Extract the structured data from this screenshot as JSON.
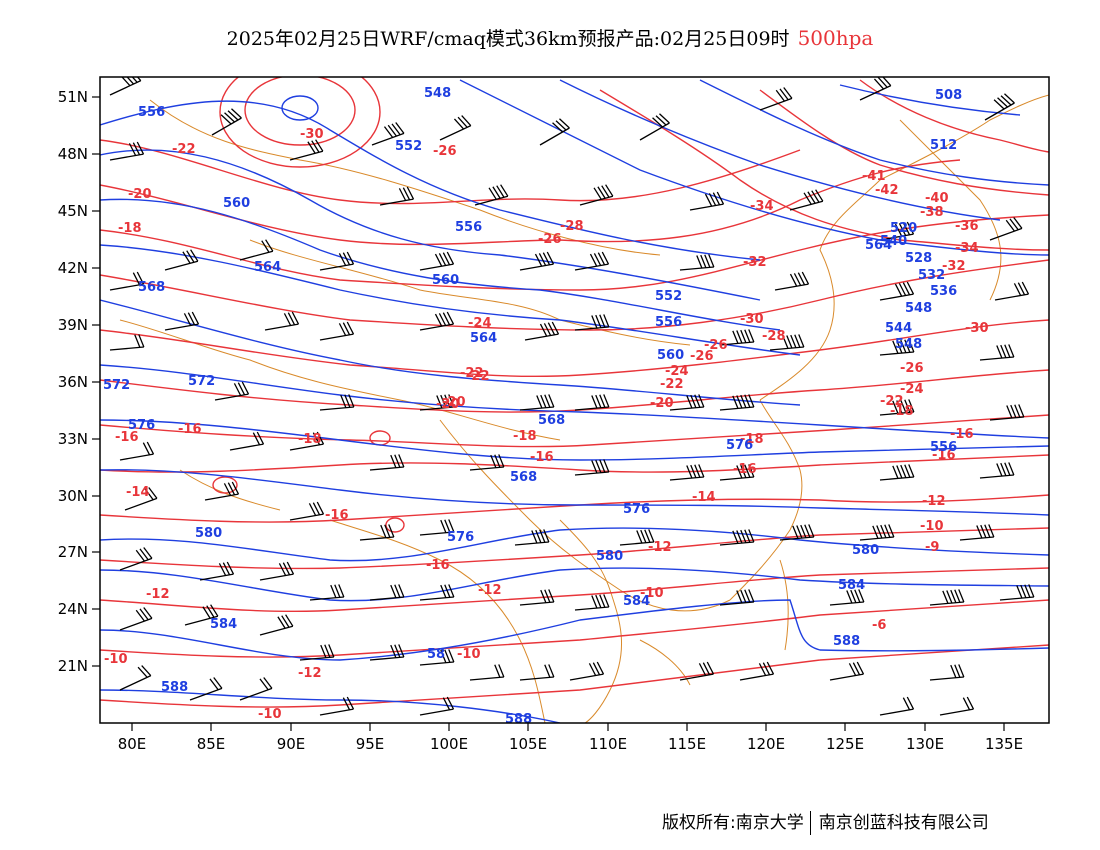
{
  "header": {
    "title": "2025年02月25日WRF/cmaq模式36km预报产品:02月25日09时",
    "level": "500hpa"
  },
  "axes": {
    "lat_labels": [
      "51N",
      "48N",
      "45N",
      "42N",
      "39N",
      "36N",
      "33N",
      "30N",
      "27N",
      "24N",
      "21N"
    ],
    "lon_labels": [
      "80E",
      "85E",
      "90E",
      "95E",
      "100E",
      "105E",
      "110E",
      "115E",
      "120E",
      "125E",
      "130E",
      "135E"
    ]
  },
  "colors": {
    "height": "#1f3fe0",
    "temperature": "#e8353a",
    "coast": "#d98a2b",
    "wind": "#000000"
  },
  "height_labels": [
    "556",
    "548",
    "552",
    "560",
    "556",
    "564",
    "560",
    "568",
    "552",
    "508",
    "512",
    "520",
    "528",
    "532",
    "536",
    "544",
    "548",
    "556",
    "560",
    "564",
    "568",
    "572",
    "576",
    "568",
    "576",
    "572",
    "576",
    "580",
    "580",
    "580",
    "576",
    "584",
    "584",
    "584",
    "588",
    "588",
    "58",
    "588",
    "564",
    "548",
    "540",
    "556"
  ],
  "temp_labels": [
    "-30",
    "-22",
    "-26",
    "-20",
    "-18",
    "-28",
    "-26",
    "-34",
    "-41",
    "-42",
    "-38",
    "-36",
    "-40",
    "-34",
    "-32",
    "-32",
    "-30",
    "-30",
    "-28",
    "-24",
    "-22",
    "-26",
    "-24",
    "-22",
    "-20",
    "-20",
    "-24",
    "-22",
    "-26",
    "-16",
    "-16",
    "-18",
    "-18",
    "-18",
    "-16",
    "-18",
    "-16",
    "-16",
    "-14",
    "-16",
    "-16",
    "-14",
    "-12",
    "-12",
    "-12",
    "-10",
    "-10",
    "-12",
    "-10",
    "-9",
    "-6",
    "-12",
    "-10",
    "-16",
    "-10",
    "-22",
    "-20",
    "-26"
  ],
  "footer": {
    "copyright": "版权所有:南京大学",
    "partner": "南京创蓝科技有限公司"
  }
}
